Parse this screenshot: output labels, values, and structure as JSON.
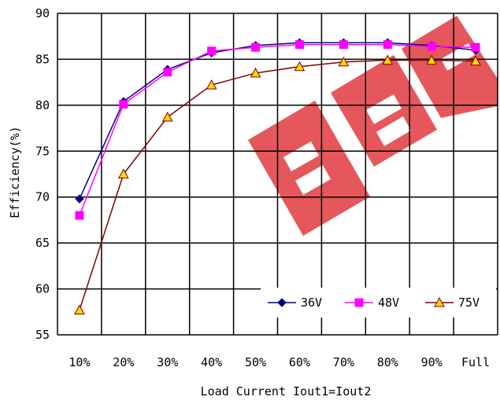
{
  "chart_data": {
    "type": "line",
    "categories": [
      "10%",
      "20%",
      "30%",
      "40%",
      "50%",
      "60%",
      "70%",
      "80%",
      "90%",
      "Full"
    ],
    "series": [
      {
        "name": "36V",
        "values": [
          69.8,
          80.4,
          83.9,
          85.7,
          86.5,
          86.8,
          86.8,
          86.8,
          86.5,
          86.0
        ],
        "color": "#000080",
        "marker": "diamond"
      },
      {
        "name": "48V",
        "values": [
          68.0,
          80.1,
          83.6,
          85.9,
          86.3,
          86.6,
          86.6,
          86.6,
          86.4,
          86.3
        ],
        "color": "#ff00ff",
        "marker": "square"
      },
      {
        "name": "75V",
        "values": [
          57.7,
          72.5,
          78.7,
          82.2,
          83.5,
          84.2,
          84.7,
          84.9,
          84.9,
          84.8
        ],
        "color": "#800000",
        "marker": "triangle",
        "marker_fill": "#ffd700"
      }
    ],
    "title": "",
    "xlabel": "Load Current Iout1=Iout2",
    "ylabel": "Efficiency(%)",
    "ylim": [
      55,
      90
    ],
    "yticks": [
      55,
      60,
      65,
      70,
      75,
      80,
      85,
      90
    ],
    "grid": true,
    "legend_position": "bottom-right"
  },
  "watermark": {
    "text": "EEPW",
    "color": "#e0393e"
  }
}
